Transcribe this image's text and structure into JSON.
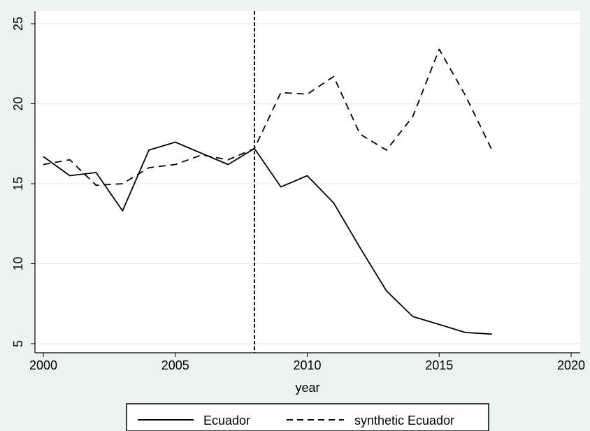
{
  "chart_data": {
    "type": "line",
    "xlabel": "year",
    "ylabel": "",
    "xlim": [
      2000,
      2020
    ],
    "ylim": [
      5,
      25
    ],
    "xticks": [
      2000,
      2005,
      2010,
      2015,
      2020
    ],
    "yticks": [
      5,
      10,
      15,
      20,
      25
    ],
    "grid": "horizontal",
    "legend_position": "bottom",
    "vertical_reference_line": 2008,
    "x": [
      2000,
      2001,
      2002,
      2003,
      2004,
      2005,
      2006,
      2007,
      2008,
      2009,
      2010,
      2011,
      2012,
      2013,
      2014,
      2015,
      2016,
      2017
    ],
    "series": [
      {
        "name": "Ecuador",
        "style": "solid",
        "values": [
          16.7,
          15.5,
          15.7,
          13.3,
          17.1,
          17.6,
          16.9,
          16.2,
          17.2,
          14.8,
          15.5,
          13.8,
          11.0,
          8.3,
          6.7,
          6.2,
          5.7,
          5.6
        ]
      },
      {
        "name": "synthetic Ecuador",
        "style": "dashed",
        "values": [
          16.2,
          16.5,
          14.9,
          15.0,
          16.0,
          16.2,
          16.8,
          16.5,
          17.2,
          20.7,
          20.6,
          21.7,
          18.1,
          17.1,
          19.2,
          23.4,
          20.5,
          17.1
        ]
      }
    ]
  }
}
